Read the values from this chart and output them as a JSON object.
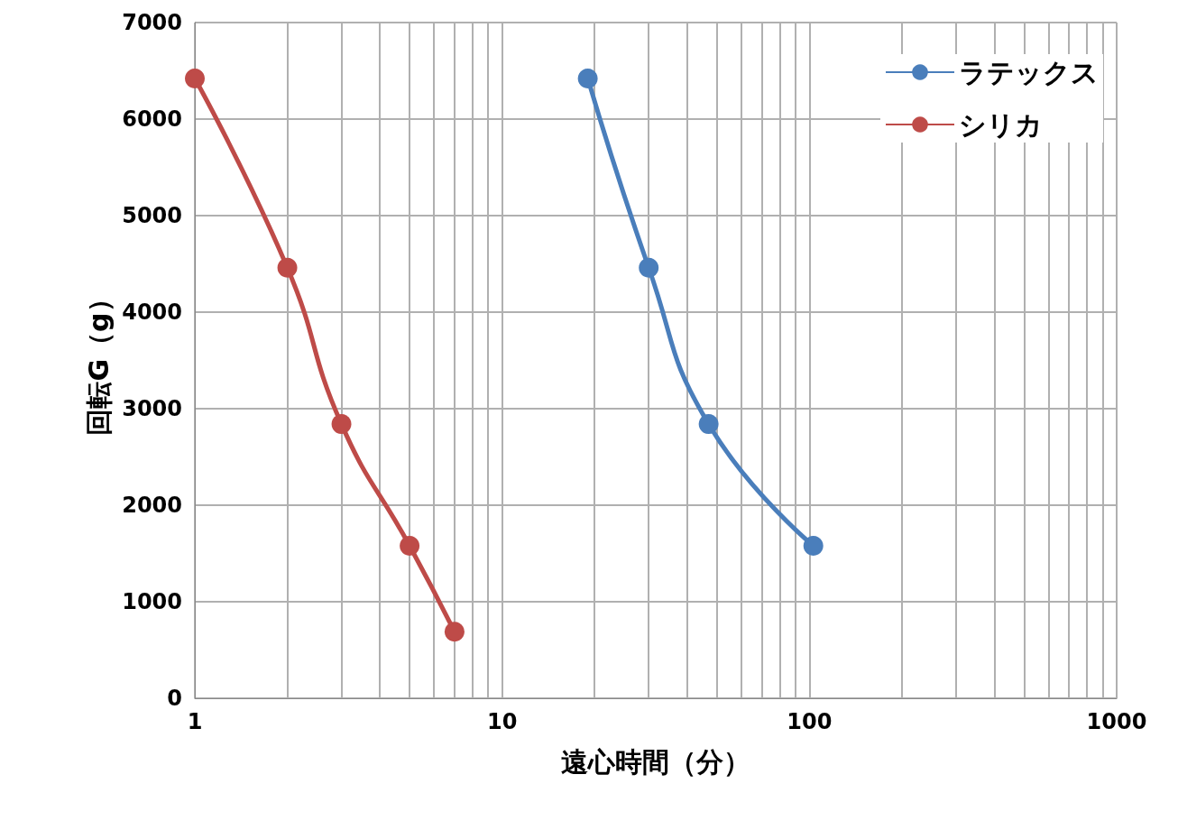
{
  "chart_data": {
    "type": "line",
    "xlabel": "遠心時間（分）",
    "ylabel": "回転G（g）",
    "log": "x",
    "grid": true,
    "legend": "top right",
    "marker": "circle",
    "line_style": "solid",
    "xlim": [
      1,
      1000
    ],
    "xticks": [
      1,
      {
        "value": 2,
        "label": null
      },
      {
        "value": 3,
        "label": null
      },
      {
        "value": 4,
        "label": null
      },
      {
        "value": 5,
        "label": null
      },
      {
        "value": 6,
        "label": null
      },
      {
        "value": 7,
        "label": null
      },
      {
        "value": 8,
        "label": null
      },
      {
        "value": 9,
        "label": null
      },
      10,
      {
        "value": 20,
        "label": null
      },
      {
        "value": 30,
        "label": null
      },
      {
        "value": 40,
        "label": null
      },
      {
        "value": 50,
        "label": null
      },
      {
        "value": 60,
        "label": null
      },
      {
        "value": 70,
        "label": null
      },
      {
        "value": 80,
        "label": null
      },
      {
        "value": 90,
        "label": null
      },
      100,
      {
        "value": 200,
        "label": null
      },
      {
        "value": 300,
        "label": null
      },
      {
        "value": 400,
        "label": null
      },
      {
        "value": 500,
        "label": null
      },
      {
        "value": 600,
        "label": null
      },
      {
        "value": 700,
        "label": null
      },
      {
        "value": 800,
        "label": null
      },
      {
        "value": 900,
        "label": null
      },
      1000
    ],
    "ylim": [
      0,
      7000
    ],
    "yticks": [
      0,
      1000,
      2000,
      3000,
      4000,
      5000,
      6000,
      7000
    ],
    "series": [
      {
        "name": "ラテックス",
        "color": "#4a7ebb",
        "x": [
          19,
          30,
          47,
          103
        ],
        "values": [
          6420,
          4460,
          2840,
          1580
        ]
      },
      {
        "name": "シリカ",
        "color": "#be4b48",
        "x": [
          1,
          2,
          3,
          5,
          7
        ],
        "values": [
          6420,
          4460,
          2840,
          1580,
          690
        ]
      }
    ]
  }
}
